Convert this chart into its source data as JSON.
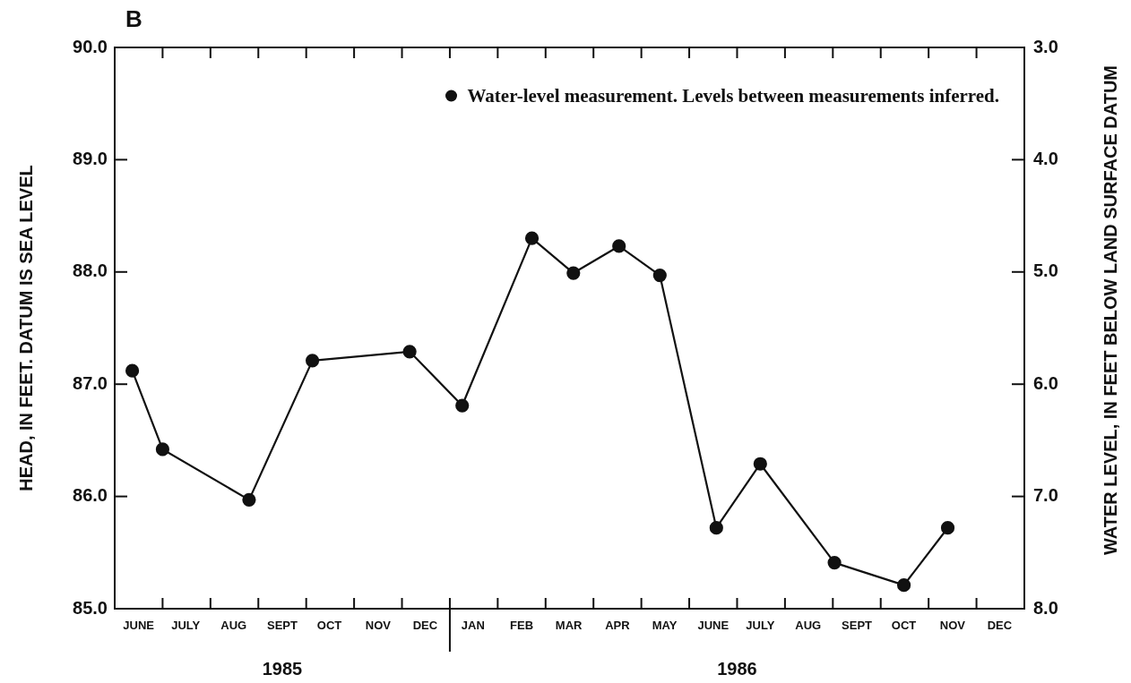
{
  "chart_data": {
    "type": "line",
    "title": "B",
    "ylabel": "HEAD, IN FEET. DATUM IS SEA LEVEL",
    "y2label": "WATER LEVEL, IN FEET BELOW LAND SURFACE DATUM",
    "x": [
      "1985-06-12",
      "1985-07-01",
      "1985-08-26",
      "1985-10-05",
      "1985-12-06",
      "1986-01-09",
      "1986-02-21",
      "1986-03-19",
      "1986-04-17",
      "1986-05-13",
      "1986-06-18",
      "1986-07-16",
      "1986-09-02",
      "1986-10-16",
      "1986-11-13"
    ],
    "series": [
      {
        "name": "Water-level measurement. Levels between measurements inferred.",
        "color": "#111111",
        "values": [
          87.12,
          86.42,
          85.97,
          87.21,
          87.29,
          86.81,
          88.3,
          87.99,
          88.23,
          87.97,
          85.72,
          86.29,
          85.41,
          85.21,
          85.72
        ]
      }
    ],
    "marker": "circle",
    "line_style": "solid",
    "legend": "top right",
    "xlim": [
      "1985-06-01",
      "1987-01-01"
    ],
    "xticks": [
      {
        "value": "1985-06-16",
        "label": "JUNE"
      },
      {
        "value": "1985-07-01",
        "label": null
      },
      {
        "value": "1985-07-16",
        "label": "JULY"
      },
      {
        "value": "1985-08-01",
        "label": null
      },
      {
        "value": "1985-08-16",
        "label": "AUG"
      },
      {
        "value": "1985-09-01",
        "label": null
      },
      {
        "value": "1985-09-16",
        "label": "SEPT"
      },
      {
        "value": "1985-10-01",
        "label": null
      },
      {
        "value": "1985-10-16",
        "label": "OCT"
      },
      {
        "value": "1985-11-01",
        "label": null
      },
      {
        "value": "1985-11-16",
        "label": "NOV"
      },
      {
        "value": "1985-12-01",
        "label": null
      },
      {
        "value": "1985-12-16",
        "label": "DEC"
      },
      {
        "value": "1986-01-01",
        "label": null
      },
      {
        "value": "1986-01-16",
        "label": "JAN"
      },
      {
        "value": "1986-02-01",
        "label": null
      },
      {
        "value": "1986-02-15",
        "label": "FEB"
      },
      {
        "value": "1986-03-01",
        "label": null
      },
      {
        "value": "1986-03-16",
        "label": "MAR"
      },
      {
        "value": "1986-04-01",
        "label": null
      },
      {
        "value": "1986-04-16",
        "label": "APR"
      },
      {
        "value": "1986-05-01",
        "label": null
      },
      {
        "value": "1986-05-16",
        "label": "MAY"
      },
      {
        "value": "1986-06-01",
        "label": null
      },
      {
        "value": "1986-06-16",
        "label": "JUNE"
      },
      {
        "value": "1986-07-01",
        "label": null
      },
      {
        "value": "1986-07-16",
        "label": "JULY"
      },
      {
        "value": "1986-08-01",
        "label": null
      },
      {
        "value": "1986-08-16",
        "label": "AUG"
      },
      {
        "value": "1986-09-01",
        "label": null
      },
      {
        "value": "1986-09-16",
        "label": "SEPT"
      },
      {
        "value": "1986-10-01",
        "label": null
      },
      {
        "value": "1986-10-16",
        "label": "OCT"
      },
      {
        "value": "1986-11-01",
        "label": null
      },
      {
        "value": "1986-11-16",
        "label": "NOV"
      },
      {
        "value": "1986-12-01",
        "label": null
      },
      {
        "value": "1986-12-16",
        "label": "DEC"
      }
    ],
    "ylim": [
      85.0,
      90.0
    ],
    "yticks": [
      {
        "value": 85,
        "label": "85.0"
      },
      {
        "value": 86,
        "label": "86.0"
      },
      {
        "value": 87,
        "label": "87.0"
      },
      {
        "value": 88,
        "label": "88.0"
      },
      {
        "value": 89,
        "label": "89.0"
      },
      {
        "value": 90,
        "label": "90.0"
      }
    ],
    "y2lim": [
      8.0,
      3.0
    ],
    "y2ticks": [
      {
        "value": 3,
        "label": "3.0"
      },
      {
        "value": 4,
        "label": "4.0"
      },
      {
        "value": 5,
        "label": "5.0"
      },
      {
        "value": 6,
        "label": "6.0"
      },
      {
        "value": 7,
        "label": "7.0"
      },
      {
        "value": 8,
        "label": "8.0"
      }
    ],
    "annotations": [
      "1985",
      "1986"
    ]
  }
}
